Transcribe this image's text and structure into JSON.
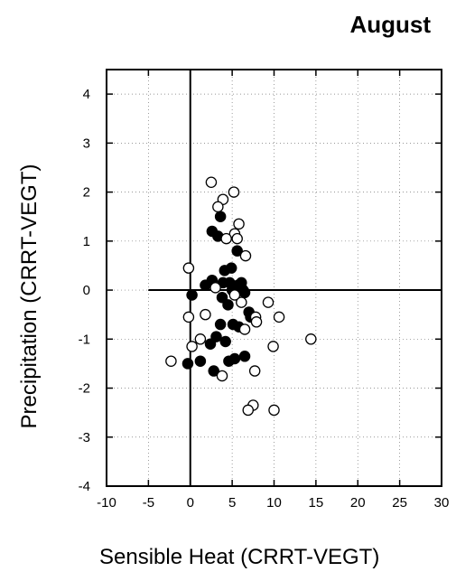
{
  "chart_data": {
    "type": "scatter",
    "title": "August",
    "xlabel": "Sensible Heat (CRRT-VEGT)",
    "ylabel": "Precipitation (CRRT-VEGT)",
    "xlim": [
      -10,
      30
    ],
    "ylim": [
      -4,
      4.5
    ],
    "x_ticks": [
      -10,
      -5,
      0,
      5,
      10,
      15,
      20,
      25,
      30
    ],
    "y_ticks": [
      -4,
      -3,
      -2,
      -1,
      0,
      1,
      2,
      3,
      4
    ],
    "grid": true,
    "reference_lines": {
      "x": 0,
      "y": 0
    },
    "series": [
      {
        "marker": "filled-circle",
        "color": "#000000",
        "points": [
          [
            3.6,
            1.5
          ],
          [
            2.6,
            1.2
          ],
          [
            3.3,
            1.1
          ],
          [
            5.6,
            0.8
          ],
          [
            4.1,
            0.4
          ],
          [
            4.9,
            0.45
          ],
          [
            1.8,
            0.1
          ],
          [
            2.6,
            0.2
          ],
          [
            3.9,
            0.15
          ],
          [
            4.7,
            0.15
          ],
          [
            5.7,
            0.1
          ],
          [
            6.1,
            0.15
          ],
          [
            5.0,
            0.0
          ],
          [
            6.3,
            0.0
          ],
          [
            6.5,
            -0.05
          ],
          [
            0.2,
            -0.1
          ],
          [
            3.8,
            -0.15
          ],
          [
            4.5,
            -0.3
          ],
          [
            7.0,
            -0.45
          ],
          [
            3.6,
            -0.7
          ],
          [
            5.1,
            -0.7
          ],
          [
            5.8,
            -0.75
          ],
          [
            7.2,
            -0.55
          ],
          [
            2.4,
            -1.1
          ],
          [
            3.1,
            -0.95
          ],
          [
            4.2,
            -1.05
          ],
          [
            4.6,
            -1.45
          ],
          [
            5.3,
            -1.4
          ],
          [
            6.5,
            -1.35
          ],
          [
            1.2,
            -1.45
          ],
          [
            2.8,
            -1.65
          ],
          [
            -0.3,
            -1.5
          ]
        ]
      },
      {
        "marker": "open-circle",
        "color": "#000000",
        "points": [
          [
            2.5,
            2.2
          ],
          [
            5.2,
            2.0
          ],
          [
            3.9,
            1.85
          ],
          [
            3.3,
            1.7
          ],
          [
            5.8,
            1.35
          ],
          [
            5.3,
            1.15
          ],
          [
            4.3,
            1.05
          ],
          [
            5.6,
            1.05
          ],
          [
            6.6,
            0.7
          ],
          [
            -0.2,
            0.45
          ],
          [
            3.0,
            0.05
          ],
          [
            5.3,
            -0.1
          ],
          [
            6.1,
            -0.25
          ],
          [
            9.3,
            -0.25
          ],
          [
            7.8,
            -0.55
          ],
          [
            10.6,
            -0.55
          ],
          [
            1.8,
            -0.5
          ],
          [
            -0.2,
            -0.55
          ],
          [
            6.5,
            -0.8
          ],
          [
            7.9,
            -0.65
          ],
          [
            1.2,
            -1.0
          ],
          [
            0.2,
            -1.15
          ],
          [
            9.9,
            -1.15
          ],
          [
            14.4,
            -1.0
          ],
          [
            -2.3,
            -1.45
          ],
          [
            7.7,
            -1.65
          ],
          [
            3.8,
            -1.75
          ],
          [
            7.5,
            -2.35
          ],
          [
            6.9,
            -2.45
          ],
          [
            10.0,
            -2.45
          ]
        ]
      }
    ]
  }
}
